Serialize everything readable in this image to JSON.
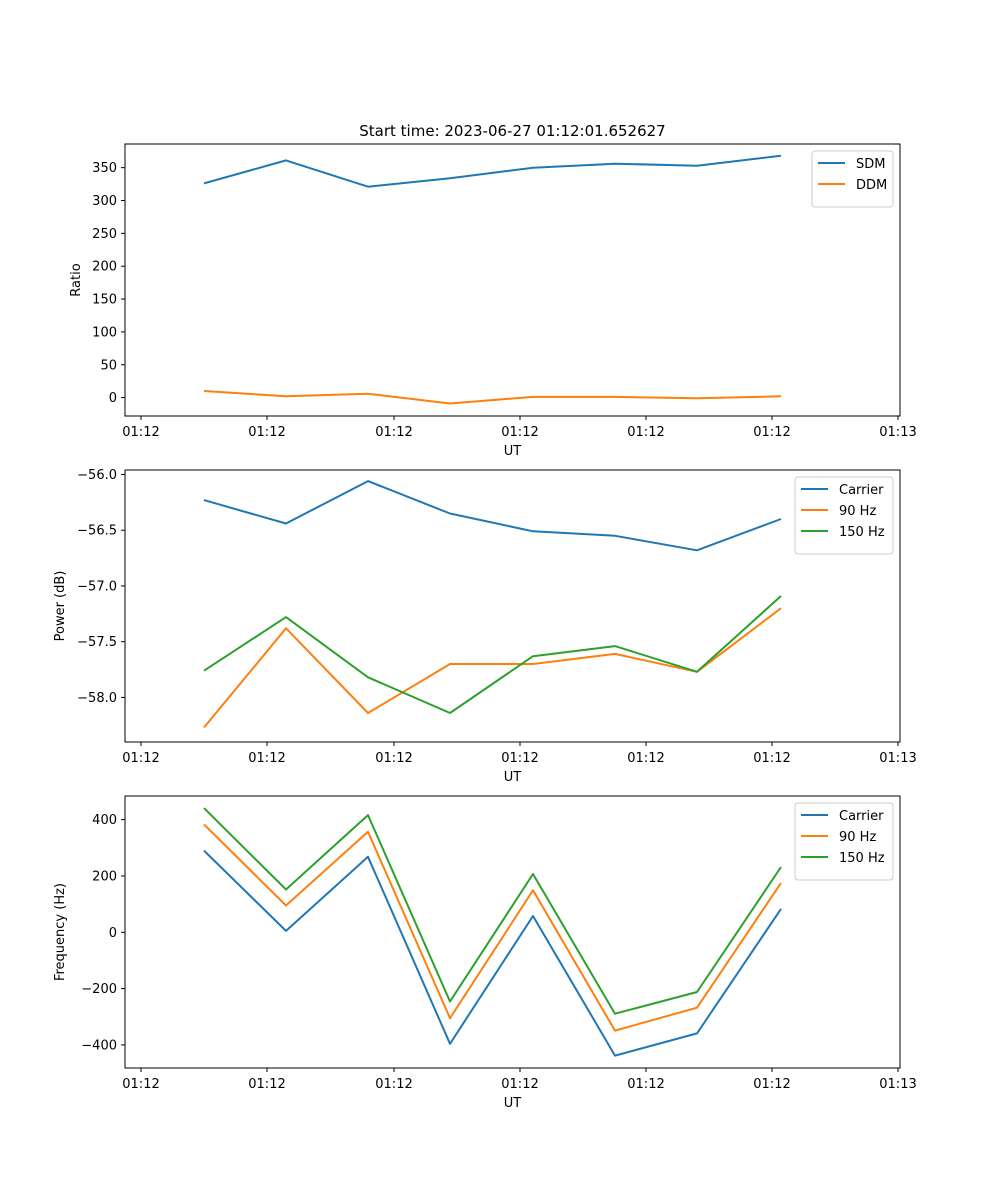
{
  "figure": {
    "title": "Start time: 2023-06-27 01:12:01.652627"
  },
  "chart_data": [
    {
      "type": "line",
      "xlabel": "UT",
      "ylabel": "Ratio",
      "x_tick_labels": [
        "01:12",
        "01:12",
        "01:12",
        "01:12",
        "01:12",
        "01:12",
        "01:12",
        "01:13"
      ],
      "yticks": [
        0,
        50,
        100,
        150,
        200,
        250,
        300,
        350
      ],
      "ylim": [
        -28,
        386
      ],
      "legend_position": "top-right",
      "grid": false,
      "series": [
        {
          "name": "SDM",
          "color": "#1f77b4",
          "values": [
            326,
            361,
            321,
            334,
            350,
            356,
            353,
            368
          ]
        },
        {
          "name": "DDM",
          "color": "#ff7f0e",
          "values": [
            10,
            2,
            6,
            -9,
            1,
            1,
            -1,
            2
          ]
        }
      ]
    },
    {
      "type": "line",
      "xlabel": "UT",
      "ylabel": "Power (dB)",
      "x_tick_labels": [
        "01:12",
        "01:12",
        "01:12",
        "01:12",
        "01:12",
        "01:12",
        "01:12",
        "01:13"
      ],
      "yticks": [
        -56.0,
        -56.5,
        -57.0,
        -57.5,
        -58.0
      ],
      "ytick_labels": [
        "−56.0",
        "−56.5",
        "−57.0",
        "−57.5",
        "−58.0"
      ],
      "ylim": [
        -58.4,
        -55.96
      ],
      "legend_position": "top-right",
      "grid": false,
      "series": [
        {
          "name": "Carrier",
          "color": "#1f77b4",
          "values": [
            -56.23,
            -56.44,
            -56.06,
            -56.35,
            -56.51,
            -56.55,
            -56.68,
            -56.4
          ]
        },
        {
          "name": "90 Hz",
          "color": "#ff7f0e",
          "values": [
            -58.27,
            -57.38,
            -58.14,
            -57.7,
            -57.7,
            -57.61,
            -57.77,
            -57.2
          ]
        },
        {
          "name": "150 Hz",
          "color": "#2ca02c",
          "values": [
            -57.76,
            -57.28,
            -57.82,
            -58.14,
            -57.63,
            -57.54,
            -57.77,
            -57.09
          ]
        }
      ]
    },
    {
      "type": "line",
      "xlabel": "UT",
      "ylabel": "Frequency (Hz)",
      "x_tick_labels": [
        "01:12",
        "01:12",
        "01:12",
        "01:12",
        "01:12",
        "01:12",
        "01:12",
        "01:13"
      ],
      "yticks": [
        400,
        200,
        0,
        -200,
        -400
      ],
      "ytick_labels": [
        "400",
        "200",
        "0",
        "−200",
        "−400"
      ],
      "ylim": [
        -482,
        484
      ],
      "legend_position": "top-right",
      "grid": false,
      "series": [
        {
          "name": "Carrier",
          "color": "#1f77b4",
          "values": [
            290,
            5,
            268,
            -396,
            58,
            -438,
            -359,
            83
          ]
        },
        {
          "name": "90 Hz",
          "color": "#ff7f0e",
          "values": [
            383,
            95,
            357,
            -305,
            149,
            -349,
            -268,
            175
          ]
        },
        {
          "name": "150 Hz",
          "color": "#2ca02c",
          "values": [
            441,
            152,
            416,
            -246,
            207,
            -289,
            -212,
            232
          ]
        }
      ]
    }
  ]
}
